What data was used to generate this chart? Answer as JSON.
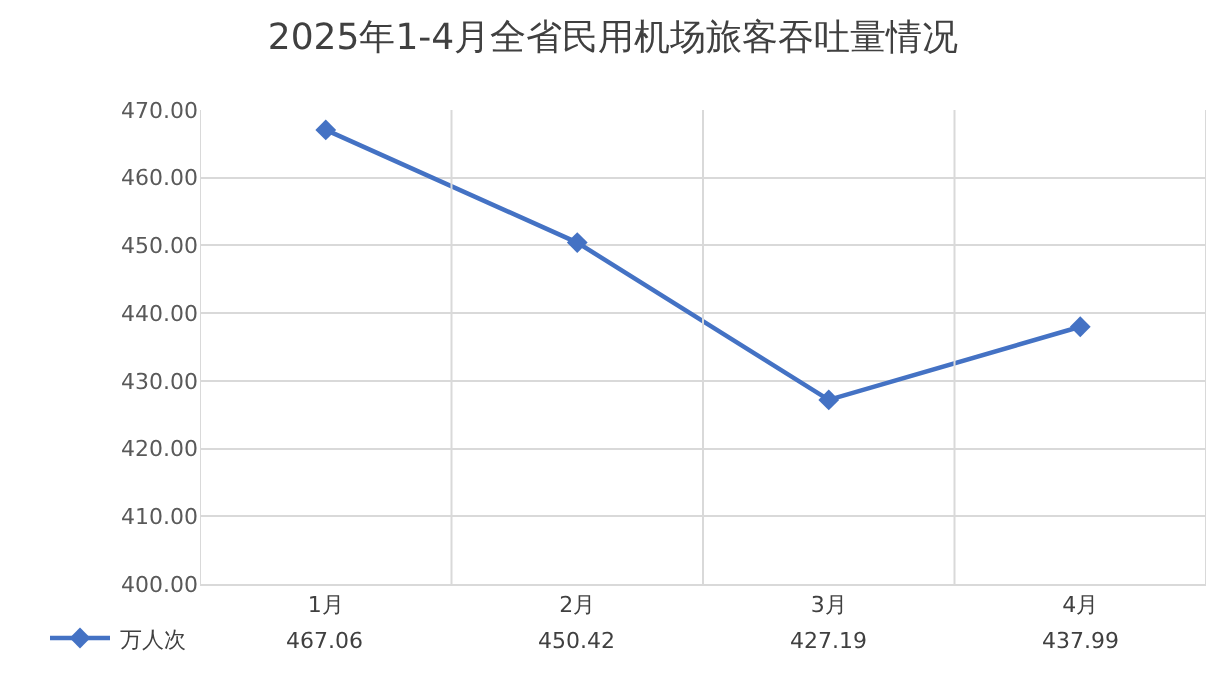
{
  "chart_data": {
    "type": "line",
    "title": "2025年1-4月全省民用机场旅客吞吐量情况",
    "categories": [
      "1月",
      "2月",
      "3月",
      "4月"
    ],
    "series": [
      {
        "name": "万人次",
        "color": "#4472c4",
        "values": [
          467.06,
          450.42,
          427.19,
          437.99
        ]
      }
    ],
    "ylim": [
      400,
      470
    ],
    "yticks": [
      {
        "value": 400,
        "label": "400.00"
      },
      {
        "value": 410,
        "label": "410.00"
      },
      {
        "value": 420,
        "label": "420.00"
      },
      {
        "value": 430,
        "label": "430.00"
      },
      {
        "value": 440,
        "label": "440.00"
      },
      {
        "value": 450,
        "label": "450.00"
      },
      {
        "value": 460,
        "label": "460.00"
      },
      {
        "value": 470,
        "label": "470.00"
      }
    ],
    "grid": true,
    "legend": "bottom left",
    "marker": "diamond",
    "line_style": "solid",
    "data_labels": true
  }
}
